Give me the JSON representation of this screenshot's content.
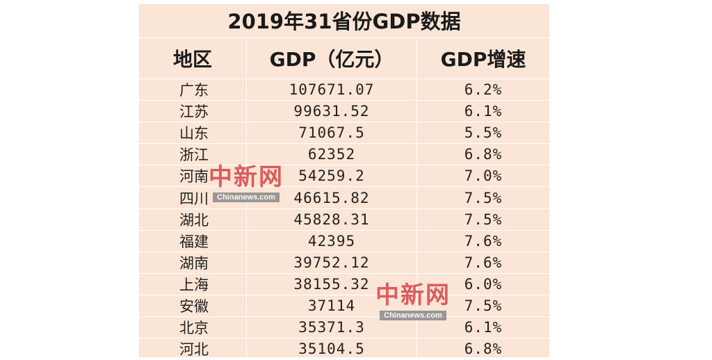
{
  "chart_data": {
    "type": "table",
    "title": "2019年31省份GDP数据",
    "columns": [
      "地区",
      "GDP（亿元）",
      "GDP增速"
    ],
    "rows": [
      [
        "广东",
        "107671.07",
        "6.2%"
      ],
      [
        "江苏",
        "99631.52",
        "6.1%"
      ],
      [
        "山东",
        "71067.5",
        "5.5%"
      ],
      [
        "浙江",
        "62352",
        "6.8%"
      ],
      [
        "河南",
        "54259.2",
        "7.0%"
      ],
      [
        "四川",
        "46615.82",
        "7.5%"
      ],
      [
        "湖北",
        "45828.31",
        "7.5%"
      ],
      [
        "福建",
        "42395",
        "7.6%"
      ],
      [
        "湖南",
        "39752.12",
        "7.6%"
      ],
      [
        "上海",
        "38155.32",
        "6.0%"
      ],
      [
        "安徽",
        "37114",
        "7.5%"
      ],
      [
        "北京",
        "35371.3",
        "6.1%"
      ],
      [
        "河北",
        "35104.5",
        "6.8%"
      ]
    ]
  },
  "watermarks": [
    {
      "cn": "中新网",
      "en": "Chinanews.com"
    },
    {
      "cn": "中新网",
      "en": "Chinanews.com"
    }
  ],
  "colors": {
    "table_bg": "#fbe5d6",
    "watermark_red": "#d6454a"
  }
}
